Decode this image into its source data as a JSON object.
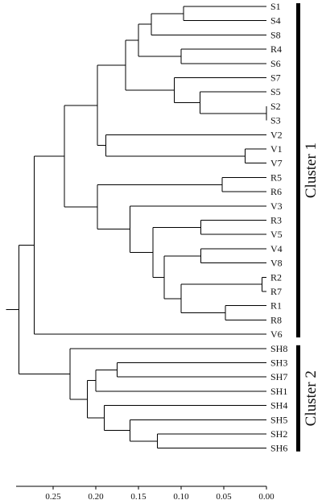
{
  "figure": {
    "type": "dendrogram",
    "leaves": [
      "S1",
      "S4",
      "S8",
      "R4",
      "S6",
      "S7",
      "S5",
      "S2",
      "S3",
      "V2",
      "V1",
      "V7",
      "R5",
      "R6",
      "V3",
      "R3",
      "V5",
      "V4",
      "V8",
      "R2",
      "R7",
      "R1",
      "R8",
      "V6",
      "SH8",
      "SH3",
      "SH7",
      "SH1",
      "SH4",
      "SH5",
      "SH2",
      "SH6"
    ],
    "merges": [
      {
        "id": "m_s2s3",
        "children": [
          "S2",
          "S3"
        ],
        "height": 0.0
      },
      {
        "id": "m_r2r7",
        "children": [
          "R2",
          "R7"
        ],
        "height": 0.005
      },
      {
        "id": "m_v1v7",
        "children": [
          "V1",
          "V7"
        ],
        "height": 0.025
      },
      {
        "id": "m_r1r8",
        "children": [
          "R1",
          "R8"
        ],
        "height": 0.048
      },
      {
        "id": "m_r5r6",
        "children": [
          "R5",
          "R6"
        ],
        "height": 0.052
      },
      {
        "id": "m_r3v5",
        "children": [
          "R3",
          "V5"
        ],
        "height": 0.077
      },
      {
        "id": "m_v4v8",
        "children": [
          "V4",
          "V8"
        ],
        "height": 0.077
      },
      {
        "id": "m_s5s2",
        "children": [
          "S5",
          "m_s2s3"
        ],
        "height": 0.078
      },
      {
        "id": "m_s1s4",
        "children": [
          "S1",
          "S4"
        ],
        "height": 0.097
      },
      {
        "id": "m_r4s6",
        "children": [
          "R4",
          "S6"
        ],
        "height": 0.1
      },
      {
        "id": "m_r27r18",
        "children": [
          "m_r2r7",
          "m_r1r8"
        ],
        "height": 0.1
      },
      {
        "id": "m_s7s5",
        "children": [
          "S7",
          "m_s5s2"
        ],
        "height": 0.108
      },
      {
        "id": "m_v4r2",
        "children": [
          "m_v4v8",
          "m_r27r18"
        ],
        "height": 0.12
      },
      {
        "id": "m_sh2sh6",
        "children": [
          "SH2",
          "SH6"
        ],
        "height": 0.128
      },
      {
        "id": "m_r3v4",
        "children": [
          "m_r3v5",
          "m_v4r2"
        ],
        "height": 0.133
      },
      {
        "id": "m_s1s8",
        "children": [
          "m_s1s4",
          "S8"
        ],
        "height": 0.135
      },
      {
        "id": "m_v3r3",
        "children": [
          "V3",
          "m_r3v4"
        ],
        "height": 0.16
      },
      {
        "id": "m_sh5sh2",
        "children": [
          "SH5",
          "m_sh2sh6"
        ],
        "height": 0.16
      },
      {
        "id": "m_s1r4",
        "children": [
          "m_s1s8",
          "m_r4s6"
        ],
        "height": 0.15
      },
      {
        "id": "m_s7up",
        "children": [
          "m_s1r4",
          "m_s7s5"
        ],
        "height": 0.165
      },
      {
        "id": "m_sh3sh7",
        "children": [
          "SH3",
          "SH7"
        ],
        "height": 0.175
      },
      {
        "id": "m_sh4sh5",
        "children": [
          "SH4",
          "m_sh5sh2"
        ],
        "height": 0.19
      },
      {
        "id": "m_v2v1",
        "children": [
          "V2",
          "m_v1v7"
        ],
        "height": 0.188
      },
      {
        "id": "m_sh37sh1",
        "children": [
          "m_sh3sh7",
          "SH1"
        ],
        "height": 0.2
      },
      {
        "id": "m_r5v3",
        "children": [
          "m_r5r6",
          "m_v3r3"
        ],
        "height": 0.198
      },
      {
        "id": "m_sh3sh4",
        "children": [
          "m_sh37sh1",
          "m_sh4sh5"
        ],
        "height": 0.21
      },
      {
        "id": "m_sv",
        "children": [
          "m_s7up",
          "m_v2v1"
        ],
        "height": 0.198
      },
      {
        "id": "m_svr",
        "children": [
          "m_sv",
          "m_r5v3"
        ],
        "height": 0.237
      },
      {
        "id": "m_sh8",
        "children": [
          "SH8",
          "m_sh3sh4"
        ],
        "height": 0.23
      },
      {
        "id": "m_c1",
        "children": [
          "m_svr",
          "V6"
        ],
        "height": 0.272
      },
      {
        "id": "m_c2",
        "children": [
          "m_sh8"
        ],
        "height": 0.23
      },
      {
        "id": "m_root",
        "children": [
          "m_c1",
          "m_sh8"
        ],
        "height": 0.29
      }
    ],
    "axis": {
      "range": [
        0.29,
        0.0
      ],
      "ticks": [
        {
          "value": 0.25,
          "label": "0.25"
        },
        {
          "value": 0.2,
          "label": "0.20"
        },
        {
          "value": 0.15,
          "label": "0.15"
        },
        {
          "value": 0.1,
          "label": "0.10"
        },
        {
          "value": 0.05,
          "label": "0.05"
        },
        {
          "value": 0.0,
          "label": "0.00"
        }
      ]
    },
    "clusters": [
      {
        "name": "Cluster 1",
        "from": "S1",
        "to": "V6"
      },
      {
        "name": "Cluster 2",
        "from": "SH8",
        "to": "SH6"
      }
    ]
  }
}
